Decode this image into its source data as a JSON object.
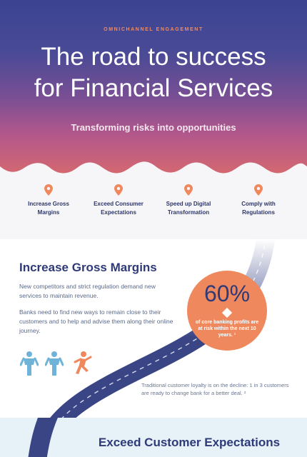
{
  "hero": {
    "eyebrow": "OMNICHANNEL ENGAGEMENT",
    "title_line1": "The road to success",
    "title_line2": "for Financial Services",
    "subtitle": "Transforming risks into opportunities"
  },
  "pillars": [
    {
      "line1": "Increase Gross",
      "line2": "Margins",
      "icon": "location-pin-icon"
    },
    {
      "line1": "Exceed Consumer",
      "line2": "Expectations",
      "icon": "location-pin-icon"
    },
    {
      "line1": "Speed up Digital",
      "line2": "Transformation",
      "icon": "location-pin-icon"
    },
    {
      "line1": "Comply with",
      "line2": "Regulations",
      "icon": "location-pin-icon"
    }
  ],
  "section1": {
    "heading": "Increase Gross Margins",
    "para1": "New competitors and strict regulation demand new services to maintain revenue.",
    "para2": "Banks need to find new ways to remain close to their customers and to help and advise them along their online journey.",
    "stat_value": "60%",
    "stat_text": "of core banking profits are at risk within the next 10 years. ¹",
    "note": "Traditional customer loyalty is on the decline: 1 in 3 customers are ready to change bank for a better deal. ²"
  },
  "section2": {
    "heading": "Exceed Customer Expectations"
  },
  "colors": {
    "accent": "#f0885d",
    "navy": "#2f3a78",
    "road": "#3a4586",
    "figure_blue": "#6fb3d8"
  }
}
